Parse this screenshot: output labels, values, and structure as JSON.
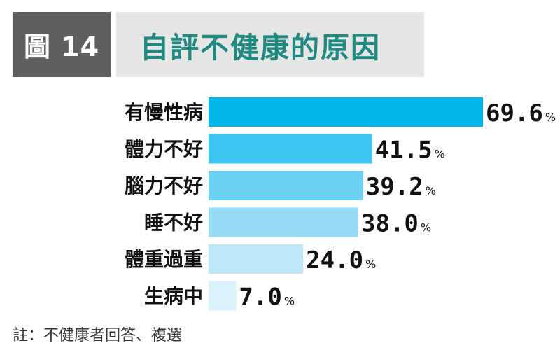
{
  "figure": {
    "badge": "圖 14",
    "title": "自評不健康的原因"
  },
  "note": "註：不健康者回答、複選",
  "chart_data": {
    "type": "bar",
    "orientation": "horizontal",
    "categories": [
      "有慢性病",
      "體力不好",
      "腦力不好",
      "睡不好",
      "體重過重",
      "生病中"
    ],
    "values": [
      69.6,
      41.5,
      39.2,
      38.0,
      24.0,
      7.0
    ],
    "value_labels": [
      "69.6",
      "41.5",
      "39.2",
      "38.0",
      "24.0",
      "7.0"
    ],
    "unit": "%",
    "xlim": [
      0,
      69.6
    ],
    "bar_colors": [
      "#00b6ea",
      "#3ec7f2",
      "#6dd2f4",
      "#97dcf6",
      "#bde8f8",
      "#d9f2fb"
    ],
    "grid": false,
    "legend": "none"
  }
}
